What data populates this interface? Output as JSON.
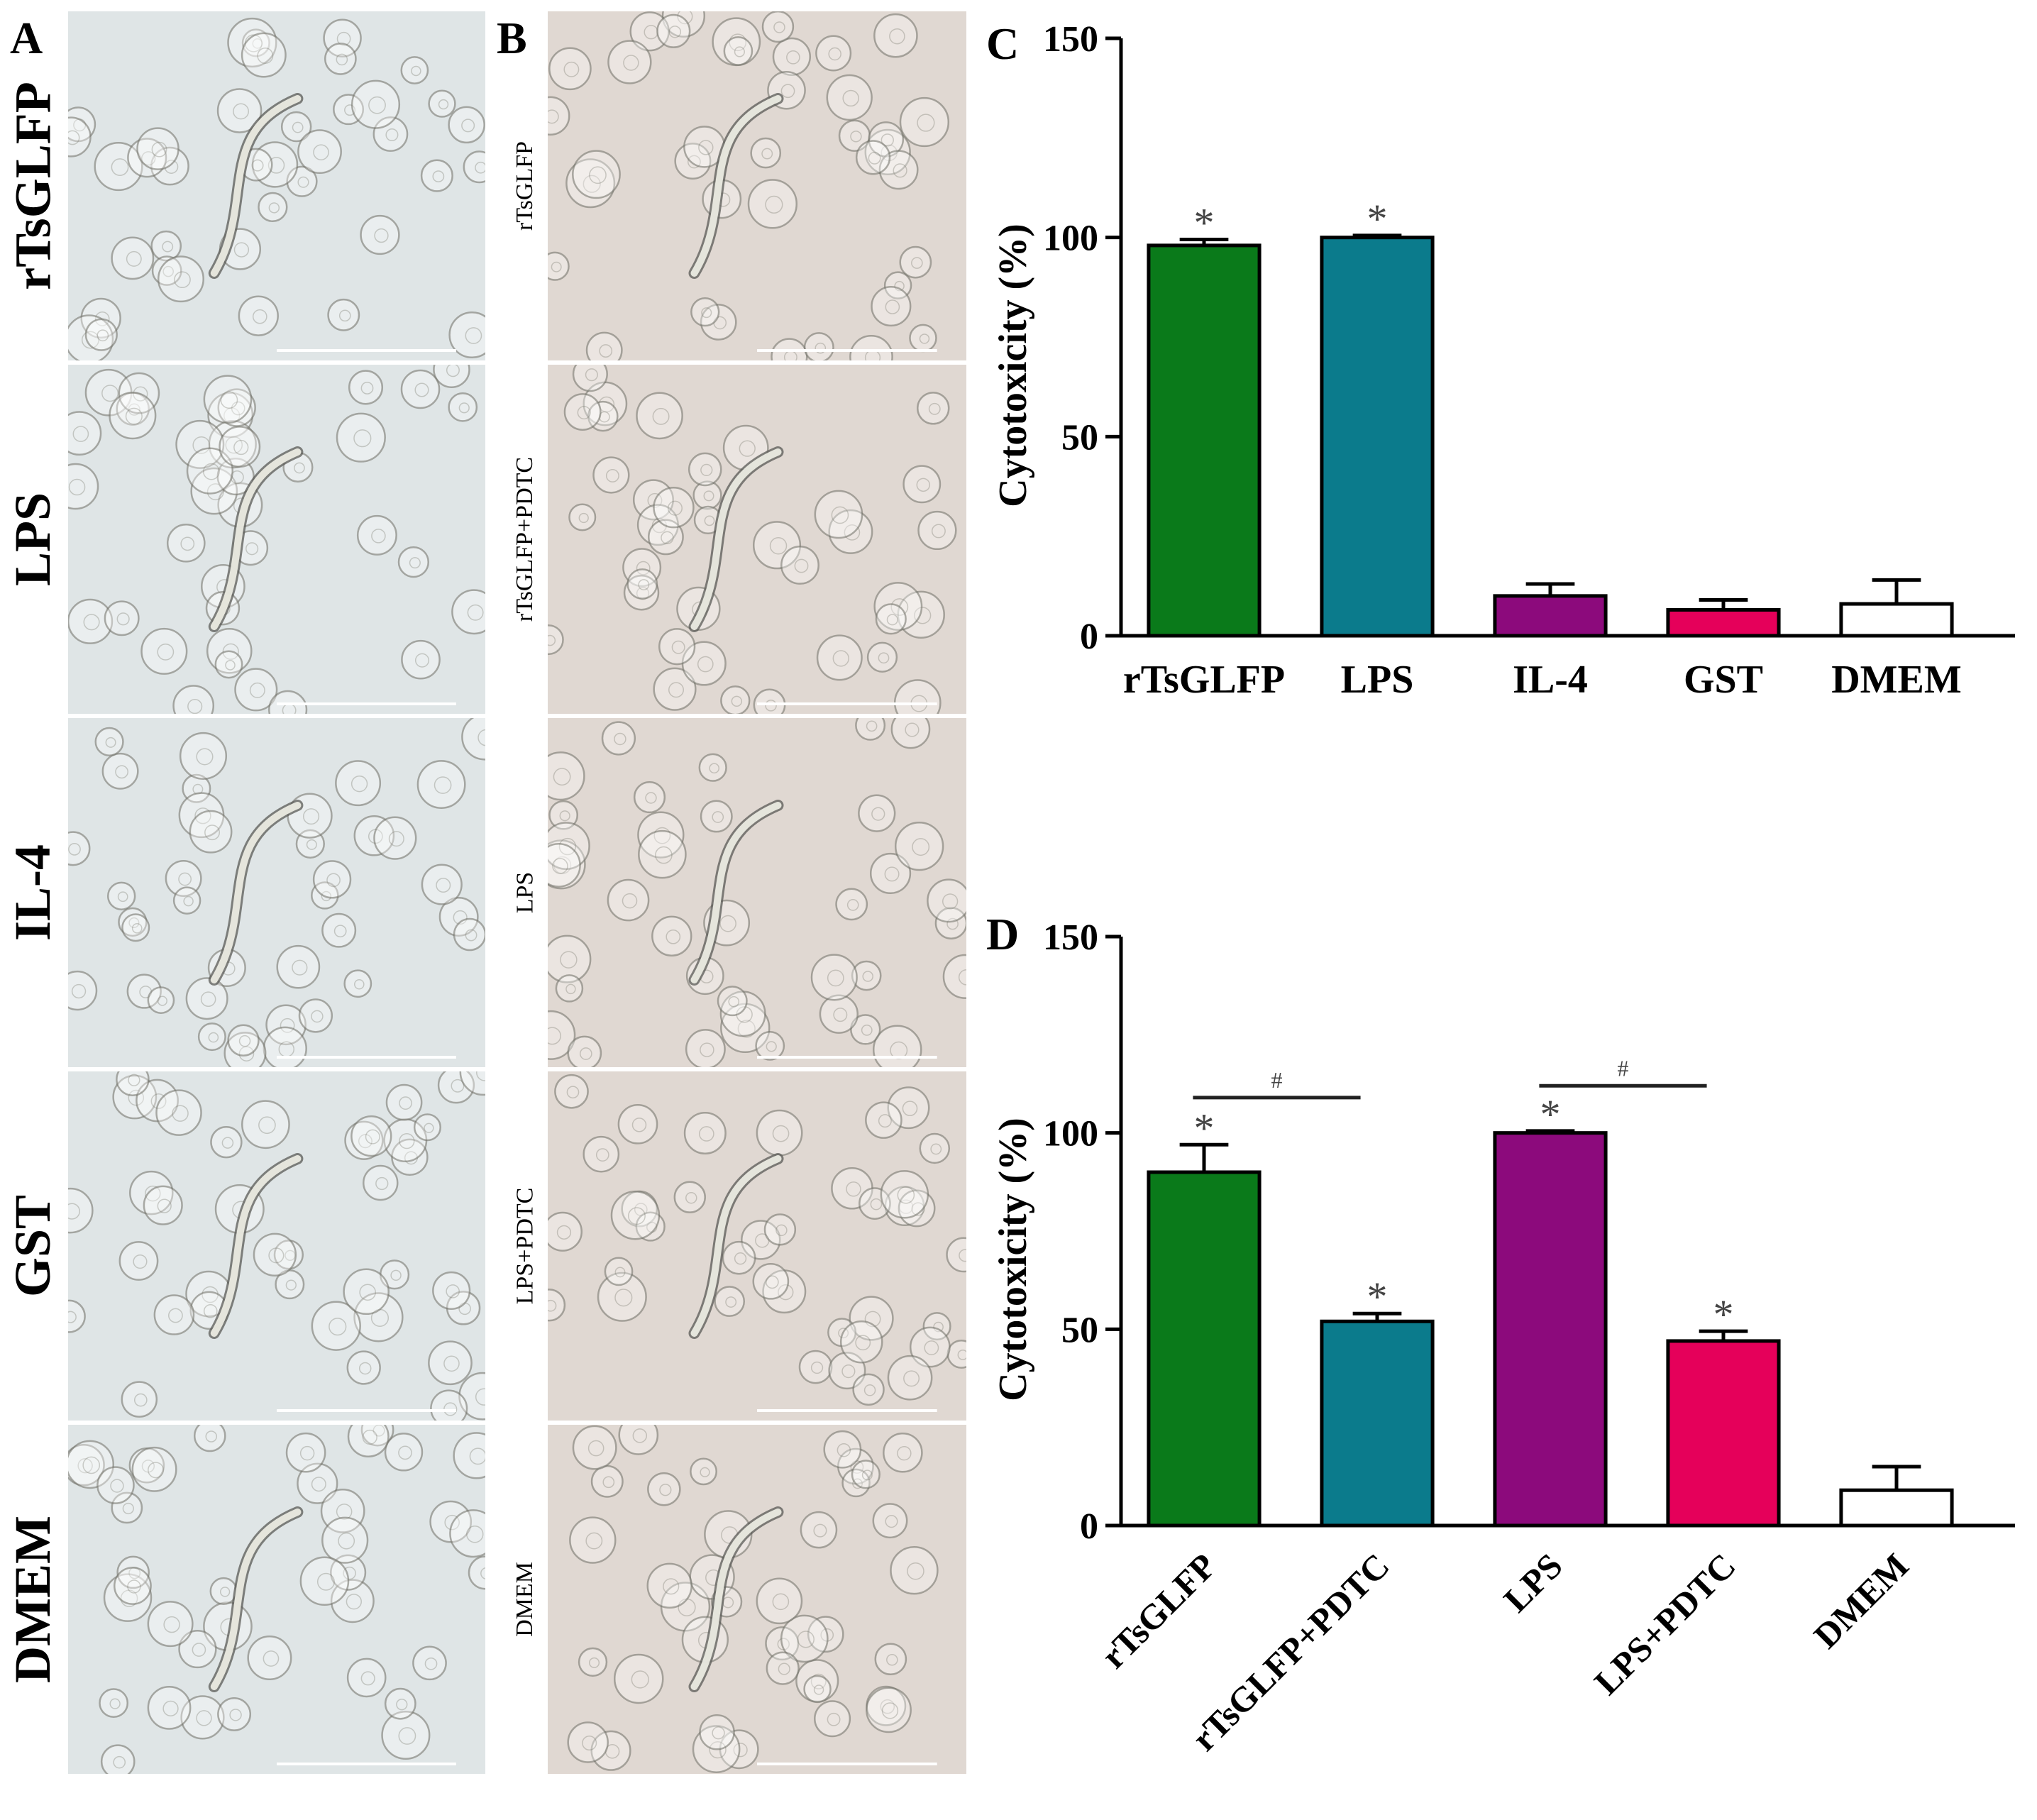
{
  "panels": {
    "A": {
      "letter": "A",
      "rows": [
        "rTsGLFP",
        "LPS",
        "IL-4",
        "GST",
        "DMEM"
      ],
      "tint": "#dfe5e6"
    },
    "B": {
      "letter": "B",
      "rows": [
        "rTsGLFP",
        "rTsGLFP+PDTC",
        "LPS",
        "LPS+PDTC",
        "DMEM"
      ],
      "tint": "#e0d8d2"
    }
  },
  "chart_data": [
    {
      "panel": "C",
      "type": "bar",
      "categories": [
        "rTsGLFP",
        "LPS",
        "IL-4",
        "GST",
        "DMEM"
      ],
      "values": [
        98,
        100,
        10,
        6.5,
        8
      ],
      "errors": [
        1.5,
        0.5,
        3,
        2.5,
        6
      ],
      "significance": [
        "*",
        "*",
        "",
        "",
        ""
      ],
      "colors": [
        "#0a7a1a",
        "#0b7b8c",
        "#8c0a7c",
        "#e5005a",
        "#ffffff"
      ],
      "ylabel": "Cytotoxicity (%)",
      "ylim": [
        0,
        150
      ],
      "yticks": [
        0,
        50,
        100,
        150
      ],
      "xlabel_rotation": 0,
      "brackets": []
    },
    {
      "panel": "D",
      "type": "bar",
      "categories": [
        "rTsGLFP",
        "rTsGLFP+PDTC",
        "LPS",
        "LPS+PDTC",
        "DMEM"
      ],
      "values": [
        90,
        52,
        100,
        47,
        9
      ],
      "errors": [
        7,
        2,
        0.5,
        2.5,
        6
      ],
      "significance": [
        "*",
        "*",
        "*",
        "*",
        ""
      ],
      "colors": [
        "#0a7a1a",
        "#0b7b8c",
        "#8c0a7c",
        "#e5005a",
        "#ffffff"
      ],
      "ylabel": "Cytotoxicity (%)",
      "ylim": [
        0,
        150
      ],
      "yticks": [
        0,
        50,
        100,
        150
      ],
      "xlabel_rotation": -45,
      "brackets": [
        {
          "from": 0,
          "to": 1,
          "y": 109,
          "label": "#"
        },
        {
          "from": 2,
          "to": 3,
          "y": 112,
          "label": "#"
        }
      ]
    }
  ]
}
